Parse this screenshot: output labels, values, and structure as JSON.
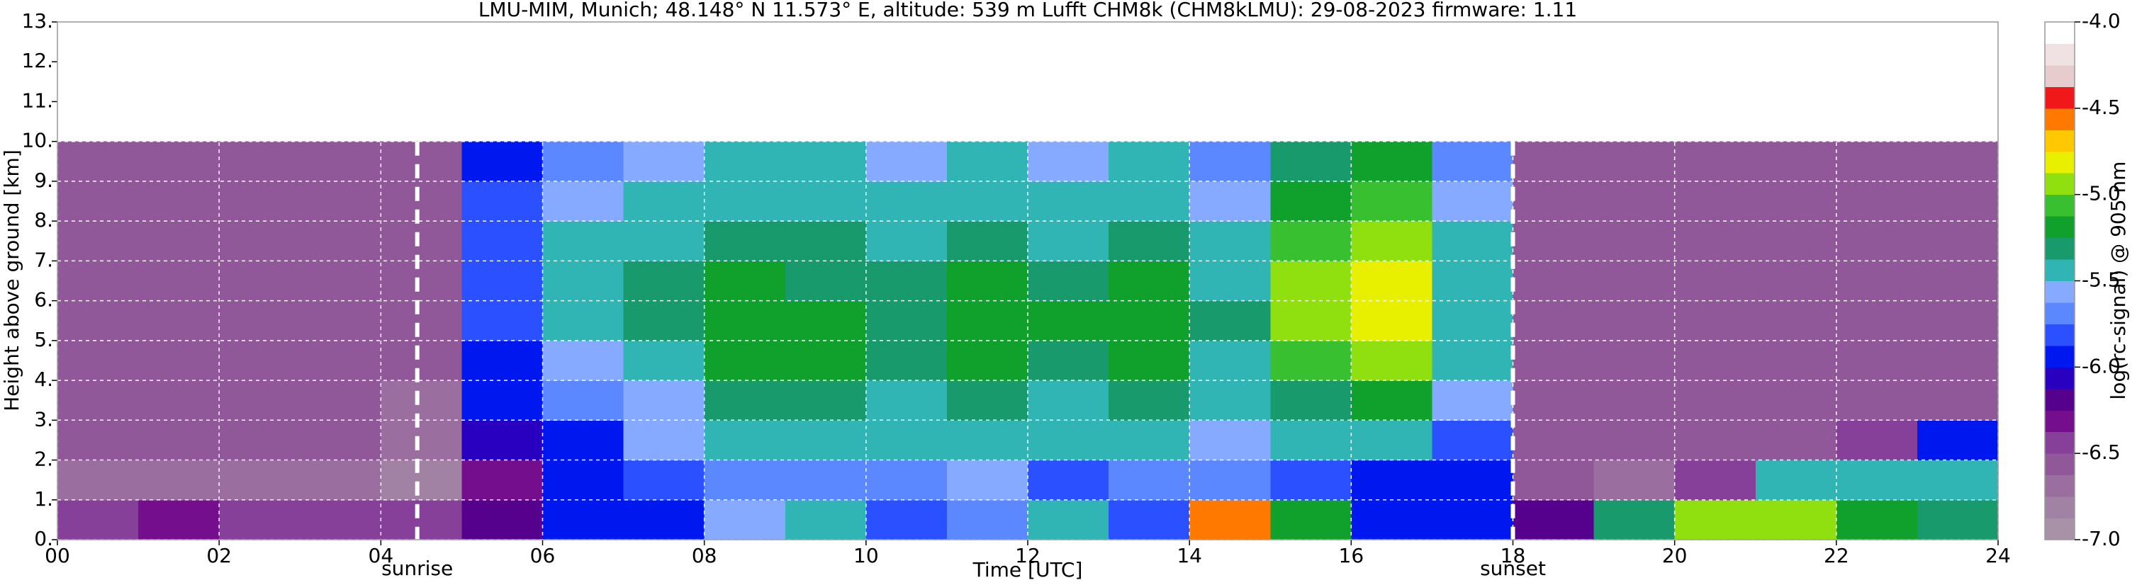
{
  "chart_data": {
    "type": "heatmap",
    "title": "LMU-MIM, Munich; 48.148° N 11.573° E, altitude: 539 m    Lufft CHM8k (CHM8kLMU): 29-08-2023    firmware: 1.11",
    "xlabel": "Time [UTC]",
    "ylabel": "Height above ground [km]",
    "colorbar_label": "log(rc-signal) @ 905 nm",
    "xlim": [
      0,
      24
    ],
    "xticks": [
      {
        "value": 0,
        "label": "00"
      },
      {
        "value": 2,
        "label": "02"
      },
      {
        "value": 4,
        "label": "04"
      },
      {
        "value": 6,
        "label": "06"
      },
      {
        "value": 8,
        "label": "08"
      },
      {
        "value": 10,
        "label": "10"
      },
      {
        "value": 12,
        "label": "12"
      },
      {
        "value": 14,
        "label": "14"
      },
      {
        "value": 16,
        "label": "16"
      },
      {
        "value": 18,
        "label": "18"
      },
      {
        "value": 20,
        "label": "20"
      },
      {
        "value": 22,
        "label": "22"
      },
      {
        "value": 24,
        "label": "24"
      }
    ],
    "ylim": [
      0,
      13
    ],
    "yticks": [
      {
        "value": 0,
        "label": "0."
      },
      {
        "value": 1,
        "label": "1."
      },
      {
        "value": 2,
        "label": "2."
      },
      {
        "value": 3,
        "label": "3."
      },
      {
        "value": 4,
        "label": "4."
      },
      {
        "value": 5,
        "label": "5."
      },
      {
        "value": 6,
        "label": "6."
      },
      {
        "value": 7,
        "label": "7."
      },
      {
        "value": 8,
        "label": "8."
      },
      {
        "value": 9,
        "label": "9."
      },
      {
        "value": 10,
        "label": "10."
      },
      {
        "value": 11,
        "label": "11."
      },
      {
        "value": 12,
        "label": "12."
      },
      {
        "value": 13,
        "label": "13."
      }
    ],
    "grid": true,
    "clim": [
      -7,
      -4
    ],
    "cticks": [
      {
        "value": -4,
        "label": "-4.0"
      },
      -4.5,
      {
        "value": -5,
        "label": "-5.0"
      },
      -5.5,
      {
        "value": -6,
        "label": "-6.0"
      },
      -6.5,
      {
        "value": -7,
        "label": "-7.0"
      }
    ],
    "colors": [
      "#a892a8",
      "#a282a4",
      "#9a6e9e",
      "#905898",
      "#86409a",
      "#740e8c",
      "#56008e",
      "#2a00c0",
      "#0018f0",
      "#2a50ff",
      "#5c88ff",
      "#86aaff",
      "#30b4b4",
      "#189a6c",
      "#10a02c",
      "#38c030",
      "#90e010",
      "#e8f000",
      "#ffc800",
      "#ff7800",
      "#f01818",
      "#e6cccc",
      "#f0e2e2",
      "#ffffff"
    ],
    "annotations": [
      {
        "text": "sunrise",
        "x": 4.45
      },
      {
        "text": "sunset",
        "x": 18
      }
    ],
    "xbins": [
      0,
      1,
      2,
      3,
      4,
      5,
      6,
      7,
      8,
      9,
      10,
      11,
      12,
      13,
      14,
      15,
      16,
      17,
      18,
      19,
      20,
      21,
      22,
      23,
      24
    ],
    "ybins": [
      0,
      1,
      2,
      3,
      4,
      5,
      6,
      7,
      8,
      9,
      10
    ],
    "z": [
      [
        -6.4,
        -6.3,
        -6.4,
        -6.4,
        -6.4,
        -6.2,
        -6.0,
        -5.9,
        -5.6,
        -5.5,
        -5.8,
        -5.7,
        -5.4,
        -5.8,
        -4.6,
        -5.2,
        -5.9,
        -6.0,
        -6.2,
        -5.3,
        -5.0,
        -5.0,
        -5.2,
        -5.3
      ],
      [
        -6.7,
        -6.7,
        -6.7,
        -6.7,
        -6.8,
        -6.3,
        -6.0,
        -5.8,
        -5.7,
        -5.7,
        -5.7,
        -5.6,
        -5.8,
        -5.7,
        -5.7,
        -5.8,
        -6.0,
        -6.0,
        -6.6,
        -6.7,
        -6.5,
        -5.5,
        -5.4,
        -5.4
      ],
      [
        -6.6,
        -6.6,
        -6.6,
        -6.6,
        -6.7,
        -6.1,
        -5.9,
        -5.6,
        -5.4,
        -5.4,
        -5.5,
        -5.4,
        -5.5,
        -5.4,
        -5.6,
        -5.5,
        -5.5,
        -5.8,
        -6.6,
        -6.6,
        -6.6,
        -6.6,
        -6.4,
        -5.9
      ],
      [
        -6.6,
        -6.6,
        -6.6,
        -6.6,
        -6.7,
        -6.0,
        -5.7,
        -5.6,
        -5.3,
        -5.3,
        -5.4,
        -5.3,
        -5.4,
        -5.3,
        -5.5,
        -5.3,
        -5.2,
        -5.6,
        -6.6,
        -6.6,
        -6.6,
        -6.6,
        -6.6,
        -6.6
      ],
      [
        -6.6,
        -6.6,
        -6.6,
        -6.6,
        -6.6,
        -5.9,
        -5.6,
        -5.4,
        -5.2,
        -5.2,
        -5.3,
        -5.2,
        -5.3,
        -5.2,
        -5.4,
        -5.1,
        -5.0,
        -5.5,
        -6.6,
        -6.6,
        -6.6,
        -6.6,
        -6.6,
        -6.6
      ],
      [
        -6.6,
        -6.6,
        -6.6,
        -6.6,
        -6.6,
        -5.8,
        -5.5,
        -5.3,
        -5.2,
        -5.2,
        -5.3,
        -5.2,
        -5.2,
        -5.2,
        -5.3,
        -5.0,
        -4.8,
        -5.4,
        -6.6,
        -6.6,
        -6.6,
        -6.6,
        -6.6,
        -6.6
      ],
      [
        -6.6,
        -6.6,
        -6.6,
        -6.6,
        -6.6,
        -5.8,
        -5.5,
        -5.3,
        -5.2,
        -5.3,
        -5.3,
        -5.2,
        -5.3,
        -5.2,
        -5.4,
        -5.0,
        -4.8,
        -5.4,
        -6.6,
        -6.6,
        -6.6,
        -6.6,
        -6.6,
        -6.6
      ],
      [
        -6.6,
        -6.6,
        -6.6,
        -6.6,
        -6.6,
        -5.8,
        -5.5,
        -5.4,
        -5.3,
        -5.3,
        -5.4,
        -5.3,
        -5.4,
        -5.3,
        -5.5,
        -5.1,
        -5.0,
        -5.5,
        -6.6,
        -6.6,
        -6.6,
        -6.6,
        -6.6,
        -6.6
      ],
      [
        -6.6,
        -6.6,
        -6.6,
        -6.6,
        -6.6,
        -5.8,
        -5.6,
        -5.5,
        -5.4,
        -5.4,
        -5.5,
        -5.4,
        -5.5,
        -5.4,
        -5.6,
        -5.2,
        -5.1,
        -5.6,
        -6.6,
        -6.6,
        -6.6,
        -6.6,
        -6.6,
        -6.6
      ],
      [
        -6.6,
        -6.6,
        -6.6,
        -6.6,
        -6.6,
        -5.9,
        -5.7,
        -5.6,
        -5.5,
        -5.5,
        -5.6,
        -5.5,
        -5.6,
        -5.5,
        -5.7,
        -5.3,
        -5.2,
        -5.7,
        -6.6,
        -6.6,
        -6.6,
        -6.6,
        -6.6,
        -6.6
      ]
    ]
  }
}
